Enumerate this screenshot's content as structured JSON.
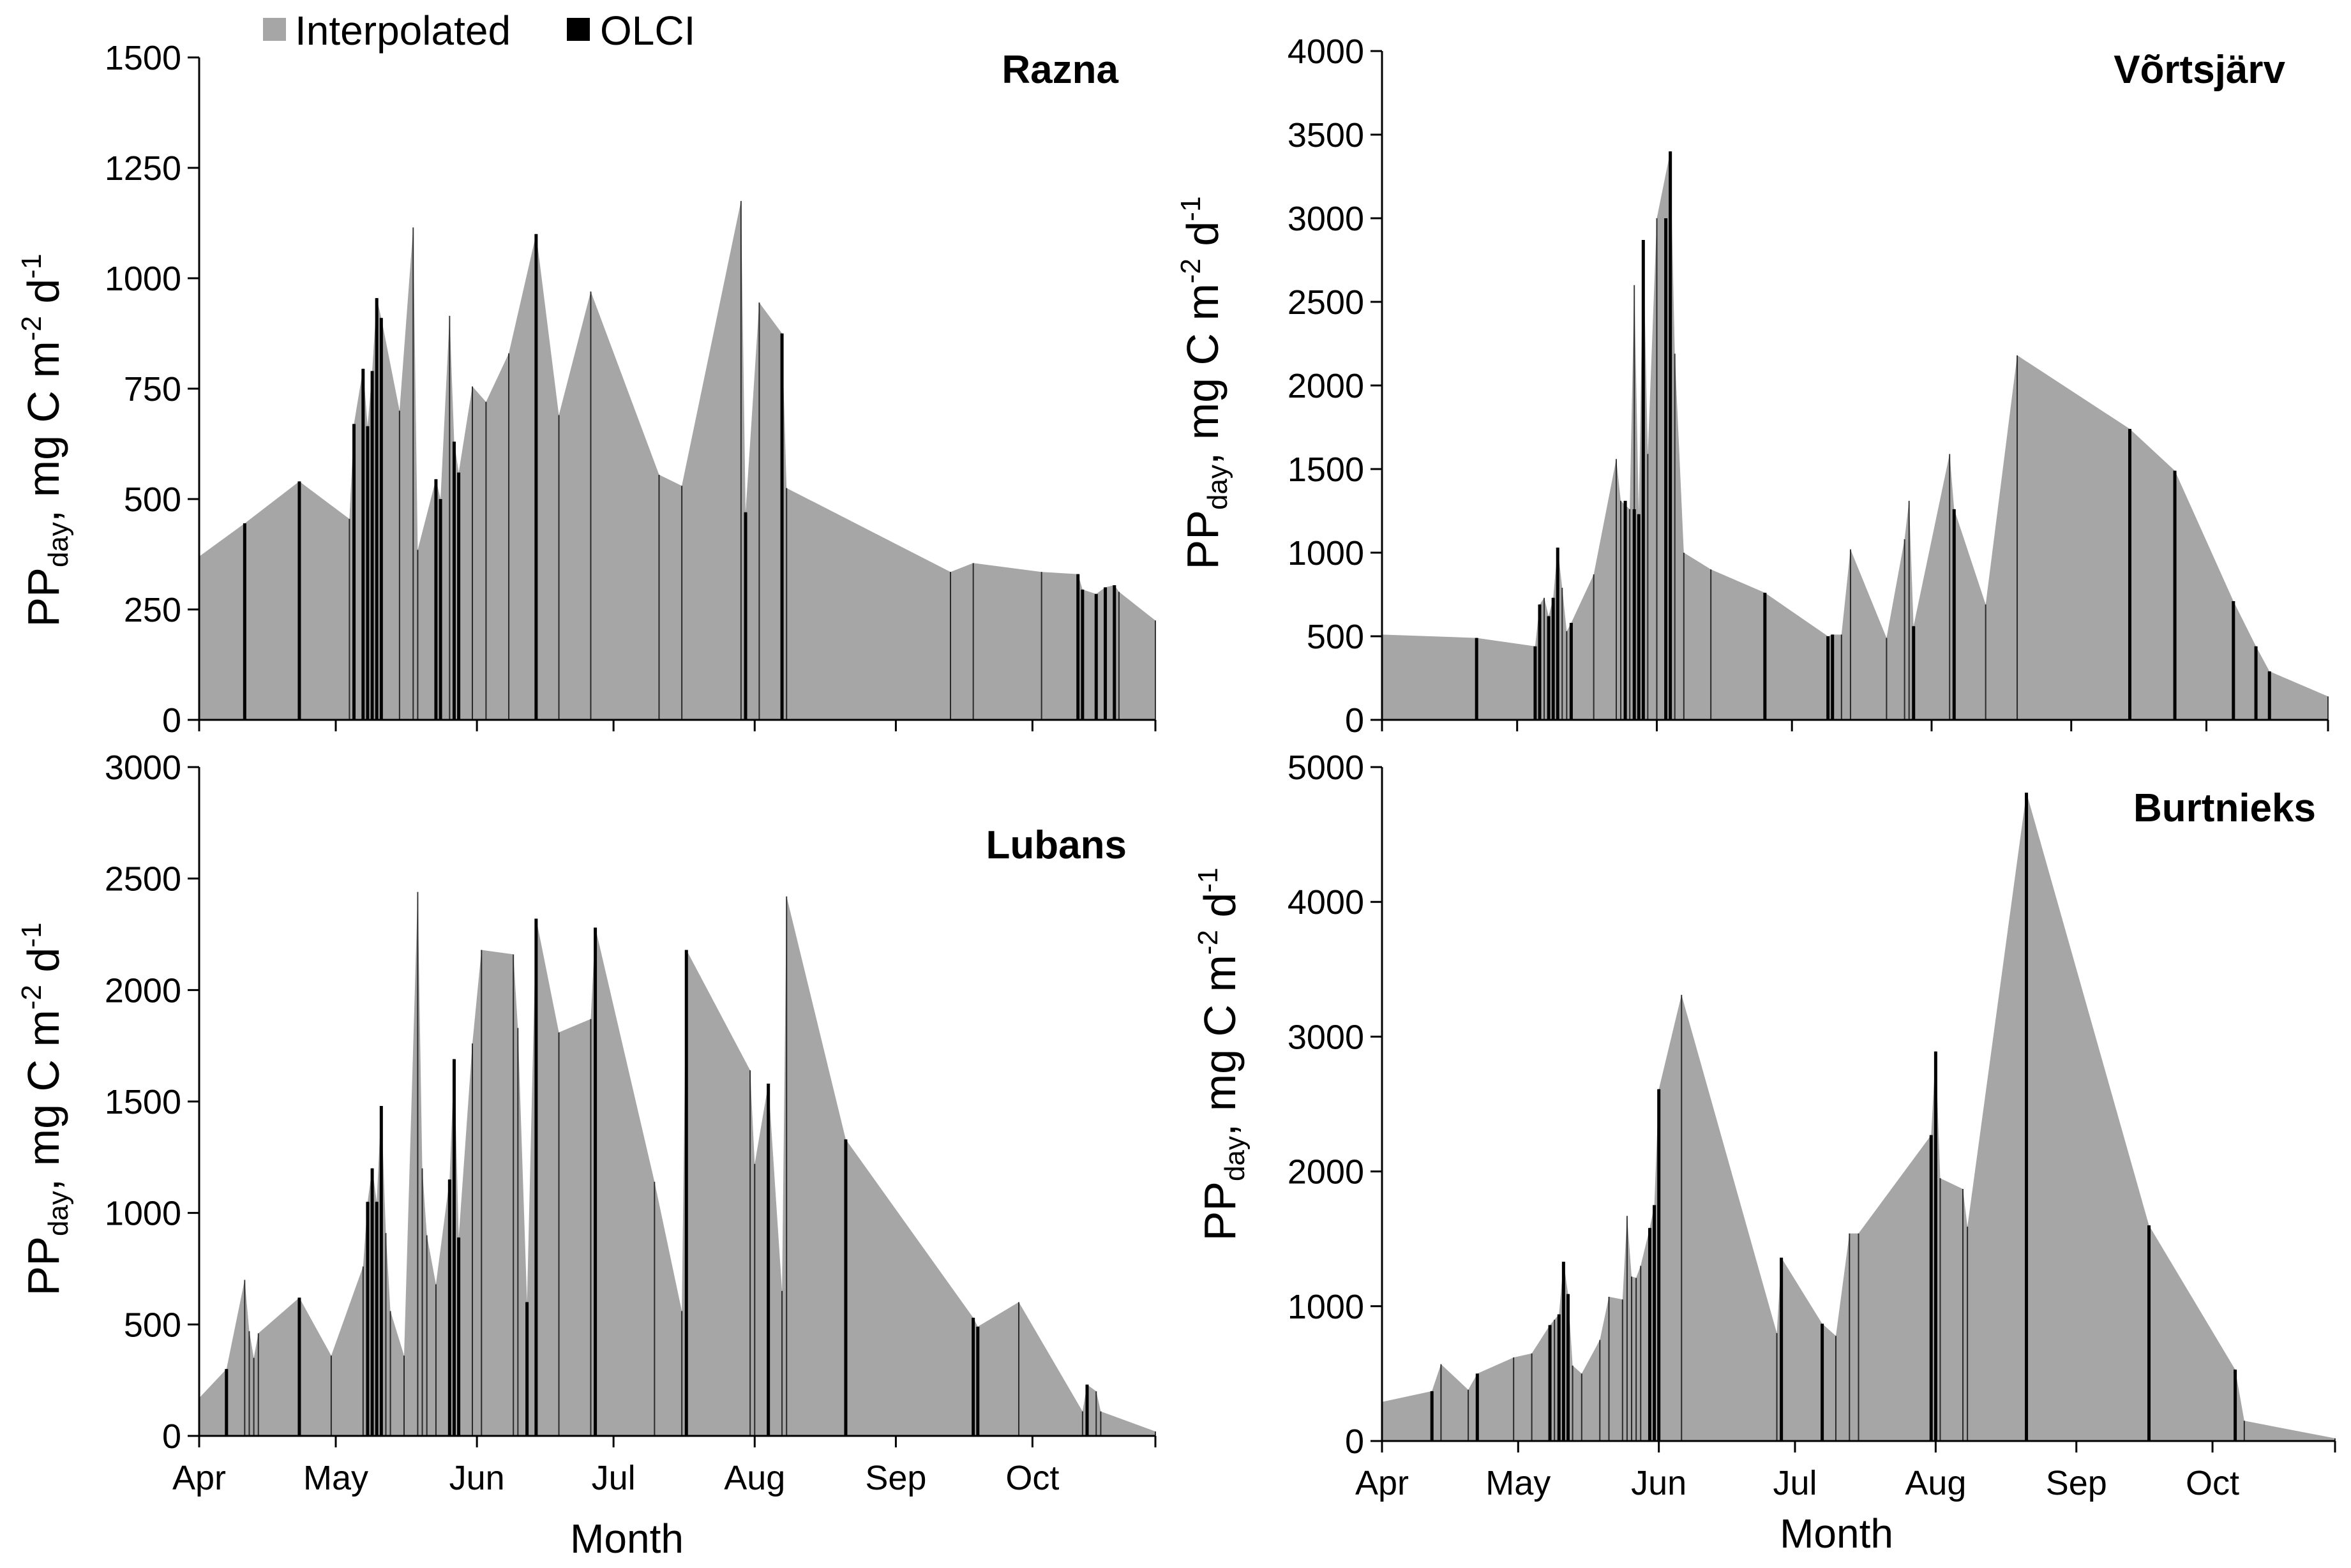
{
  "legend": {
    "interpolated_label": "Interpolated",
    "olci_label": "OLCI",
    "interpolated_color": "#a6a6a6",
    "olci_color": "#000000"
  },
  "axis_text": {
    "pp": "PP",
    "day": "day",
    "units_a": ", mg C m",
    "exp_m": "-2",
    "units_b": " d",
    "exp_d": "-1",
    "xlabel": "Month"
  },
  "chart_data": [
    {
      "type": "area",
      "title": "Razna",
      "ylabel": "PPday, mg C m-2 d-1",
      "xlabel": "",
      "ylim": [
        0,
        1500
      ],
      "yticks": [
        "0",
        "250",
        "500",
        "750",
        "1000",
        "1250",
        "1500"
      ],
      "xlim": [
        0,
        210
      ],
      "month_labels": [
        "Apr",
        "May",
        "Jun",
        "Jul",
        "Aug",
        "Sep",
        "Oct"
      ],
      "month_starts": [
        0,
        30,
        61,
        91,
        122,
        153,
        183
      ],
      "x_tick_labels_visible": false,
      "interpolated": [
        [
          0,
          370
        ],
        [
          10,
          445
        ],
        [
          22,
          540
        ],
        [
          33,
          455
        ],
        [
          34,
          670
        ],
        [
          36,
          795
        ],
        [
          37,
          665
        ],
        [
          38,
          790
        ],
        [
          39,
          955
        ],
        [
          40,
          910
        ],
        [
          44,
          700
        ],
        [
          47,
          1115
        ],
        [
          48,
          385
        ],
        [
          52,
          545
        ],
        [
          53,
          500
        ],
        [
          55,
          915
        ],
        [
          56,
          630
        ],
        [
          57,
          560
        ],
        [
          60,
          755
        ],
        [
          63,
          720
        ],
        [
          68,
          830
        ],
        [
          74,
          1100
        ],
        [
          79,
          690
        ],
        [
          86,
          970
        ],
        [
          101,
          555
        ],
        [
          106,
          530
        ],
        [
          119,
          1175
        ],
        [
          120,
          470
        ],
        [
          123,
          945
        ],
        [
          128,
          875
        ],
        [
          129,
          525
        ],
        [
          165,
          335
        ],
        [
          170,
          355
        ],
        [
          185,
          335
        ],
        [
          193,
          330
        ],
        [
          194,
          295
        ],
        [
          197,
          285
        ],
        [
          199,
          300
        ],
        [
          201,
          305
        ],
        [
          202,
          290
        ],
        [
          210,
          225
        ]
      ],
      "olci": [
        [
          10,
          445
        ],
        [
          22,
          540
        ],
        [
          34,
          670
        ],
        [
          36,
          795
        ],
        [
          37,
          665
        ],
        [
          38,
          790
        ],
        [
          39,
          955
        ],
        [
          40,
          910
        ],
        [
          52,
          545
        ],
        [
          53,
          500
        ],
        [
          56,
          630
        ],
        [
          57,
          560
        ],
        [
          74,
          1100
        ],
        [
          120,
          470
        ],
        [
          128,
          875
        ],
        [
          193,
          330
        ],
        [
          194,
          295
        ],
        [
          197,
          285
        ],
        [
          199,
          300
        ],
        [
          201,
          305
        ]
      ]
    },
    {
      "type": "area",
      "title": "Võrtsjärv",
      "ylabel": "PPday, mg C m-2 d-1",
      "xlabel": "",
      "ylim": [
        0,
        4000
      ],
      "yticks": [
        "0",
        "500",
        "1000",
        "1500",
        "2000",
        "2500",
        "3000",
        "3500",
        "4000"
      ],
      "xlim": [
        0,
        210
      ],
      "month_labels": [
        "Apr",
        "May",
        "Jun",
        "Jul",
        "Aug",
        "Sep",
        "Oct"
      ],
      "month_starts": [
        0,
        30,
        61,
        91,
        122,
        153,
        183
      ],
      "x_tick_labels_visible": false,
      "interpolated": [
        [
          0,
          510
        ],
        [
          21,
          490
        ],
        [
          34,
          440
        ],
        [
          35,
          690
        ],
        [
          36,
          730
        ],
        [
          37,
          620
        ],
        [
          38,
          730
        ],
        [
          39,
          1030
        ],
        [
          40,
          790
        ],
        [
          41,
          530
        ],
        [
          42,
          580
        ],
        [
          47,
          870
        ],
        [
          52,
          1560
        ],
        [
          53,
          1310
        ],
        [
          55,
          1260
        ],
        [
          56,
          2600
        ],
        [
          57,
          1230
        ],
        [
          58,
          2870
        ],
        [
          59,
          1590
        ],
        [
          61,
          3000
        ],
        [
          64,
          3400
        ],
        [
          65,
          2190
        ],
        [
          67,
          1000
        ],
        [
          73,
          900
        ],
        [
          85,
          760
        ],
        [
          99,
          500
        ],
        [
          100,
          510
        ],
        [
          102,
          510
        ],
        [
          104,
          1020
        ],
        [
          112,
          490
        ],
        [
          116,
          1080
        ],
        [
          117,
          1310
        ],
        [
          118,
          560
        ],
        [
          126,
          1590
        ],
        [
          127,
          1260
        ],
        [
          134,
          690
        ],
        [
          141,
          2180
        ],
        [
          166,
          1740
        ],
        [
          176,
          1490
        ],
        [
          189,
          710
        ],
        [
          194,
          440
        ],
        [
          197,
          290
        ],
        [
          210,
          140
        ]
      ],
      "olci": [
        [
          21,
          490
        ],
        [
          34,
          440
        ],
        [
          35,
          690
        ],
        [
          37,
          620
        ],
        [
          38,
          730
        ],
        [
          39,
          1030
        ],
        [
          42,
          580
        ],
        [
          54,
          1310
        ],
        [
          56,
          1260
        ],
        [
          57,
          1230
        ],
        [
          58,
          2870
        ],
        [
          63,
          3000
        ],
        [
          64,
          3400
        ],
        [
          85,
          760
        ],
        [
          99,
          500
        ],
        [
          100,
          510
        ],
        [
          118,
          560
        ],
        [
          127,
          1260
        ],
        [
          166,
          1740
        ],
        [
          176,
          1490
        ],
        [
          189,
          710
        ],
        [
          194,
          440
        ],
        [
          197,
          290
        ]
      ]
    },
    {
      "type": "area",
      "title": "Lubans",
      "ylabel": "PPday, mg C m-2 d-1",
      "xlabel": "Month",
      "ylim": [
        0,
        3000
      ],
      "yticks": [
        "0",
        "500",
        "1000",
        "1500",
        "2000",
        "2500",
        "3000"
      ],
      "xlim": [
        0,
        210
      ],
      "month_labels": [
        "Apr",
        "May",
        "Jun",
        "Jul",
        "Aug",
        "Sep",
        "Oct"
      ],
      "month_starts": [
        0,
        30,
        61,
        91,
        122,
        153,
        183
      ],
      "x_tick_labels_visible": true,
      "interpolated": [
        [
          0,
          170
        ],
        [
          6,
          300
        ],
        [
          10,
          700
        ],
        [
          11,
          470
        ],
        [
          12,
          350
        ],
        [
          13,
          460
        ],
        [
          22,
          620
        ],
        [
          29,
          360
        ],
        [
          36,
          760
        ],
        [
          37,
          1050
        ],
        [
          38,
          1200
        ],
        [
          39,
          1050
        ],
        [
          40,
          1480
        ],
        [
          41,
          910
        ],
        [
          42,
          560
        ],
        [
          45,
          360
        ],
        [
          48,
          2440
        ],
        [
          49,
          1200
        ],
        [
          50,
          900
        ],
        [
          52,
          680
        ],
        [
          55,
          1150
        ],
        [
          56,
          1690
        ],
        [
          57,
          890
        ],
        [
          60,
          1760
        ],
        [
          62,
          2180
        ],
        [
          69,
          2160
        ],
        [
          70,
          1830
        ],
        [
          72,
          600
        ],
        [
          74,
          2320
        ],
        [
          79,
          1810
        ],
        [
          86,
          1870
        ],
        [
          87,
          2280
        ],
        [
          100,
          1140
        ],
        [
          106,
          560
        ],
        [
          107,
          2180
        ],
        [
          121,
          1640
        ],
        [
          122,
          1220
        ],
        [
          125,
          1580
        ],
        [
          128,
          650
        ],
        [
          129,
          2420
        ],
        [
          142,
          1330
        ],
        [
          170,
          530
        ],
        [
          171,
          490
        ],
        [
          180,
          600
        ],
        [
          194,
          110
        ],
        [
          195,
          230
        ],
        [
          197,
          200
        ],
        [
          198,
          110
        ],
        [
          210,
          20
        ]
      ],
      "olci": [
        [
          6,
          300
        ],
        [
          22,
          620
        ],
        [
          37,
          1050
        ],
        [
          38,
          1200
        ],
        [
          39,
          1050
        ],
        [
          40,
          1480
        ],
        [
          55,
          1150
        ],
        [
          56,
          1690
        ],
        [
          57,
          890
        ],
        [
          72,
          600
        ],
        [
          74,
          2320
        ],
        [
          87,
          2280
        ],
        [
          107,
          2180
        ],
        [
          125,
          1580
        ],
        [
          142,
          1330
        ],
        [
          170,
          530
        ],
        [
          171,
          490
        ],
        [
          195,
          230
        ]
      ]
    },
    {
      "type": "area",
      "title": "Burtnieks",
      "ylabel": "PPday, mg C m-2 d-1",
      "xlabel": "Month",
      "ylim": [
        0,
        5000
      ],
      "yticks": [
        "0",
        "1000",
        "2000",
        "3000",
        "4000",
        "5000"
      ],
      "xlim": [
        0,
        210
      ],
      "month_labels": [
        "Apr",
        "May",
        "Jun",
        "Jul",
        "Aug",
        "Sep",
        "Oct"
      ],
      "month_starts": [
        0,
        30,
        61,
        91,
        122,
        153,
        183
      ],
      "x_tick_labels_visible": true,
      "interpolated": [
        [
          0,
          290
        ],
        [
          11,
          370
        ],
        [
          13,
          570
        ],
        [
          19,
          380
        ],
        [
          21,
          500
        ],
        [
          29,
          620
        ],
        [
          33,
          650
        ],
        [
          37,
          860
        ],
        [
          38,
          900
        ],
        [
          39,
          940
        ],
        [
          40,
          1330
        ],
        [
          41,
          1090
        ],
        [
          42,
          560
        ],
        [
          44,
          500
        ],
        [
          48,
          750
        ],
        [
          50,
          1070
        ],
        [
          53,
          1050
        ],
        [
          54,
          1670
        ],
        [
          55,
          1220
        ],
        [
          56,
          1210
        ],
        [
          57,
          1300
        ],
        [
          59,
          1580
        ],
        [
          60,
          1750
        ],
        [
          61,
          2610
        ],
        [
          66,
          3310
        ],
        [
          87,
          800
        ],
        [
          88,
          1360
        ],
        [
          97,
          870
        ],
        [
          100,
          780
        ],
        [
          103,
          1540
        ],
        [
          105,
          1540
        ],
        [
          121,
          2270
        ],
        [
          122,
          2890
        ],
        [
          123,
          1950
        ],
        [
          128,
          1870
        ],
        [
          129,
          1590
        ],
        [
          142,
          4810
        ],
        [
          169,
          1600
        ],
        [
          188,
          530
        ],
        [
          190,
          150
        ],
        [
          210,
          20
        ]
      ],
      "olci": [
        [
          11,
          370
        ],
        [
          21,
          500
        ],
        [
          37,
          860
        ],
        [
          39,
          940
        ],
        [
          40,
          1330
        ],
        [
          41,
          1090
        ],
        [
          59,
          1580
        ],
        [
          60,
          1750
        ],
        [
          61,
          2610
        ],
        [
          88,
          1360
        ],
        [
          97,
          870
        ],
        [
          121,
          2270
        ],
        [
          122,
          2890
        ],
        [
          142,
          4810
        ],
        [
          169,
          1600
        ],
        [
          188,
          530
        ]
      ]
    }
  ]
}
